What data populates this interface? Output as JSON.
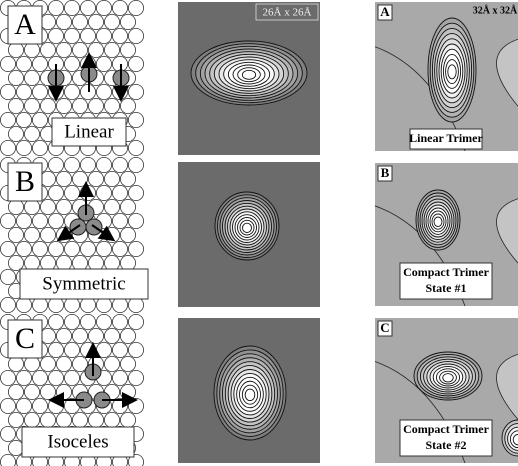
{
  "left_column": {
    "rows": [
      {
        "letter": "A",
        "caption": "Linear"
      },
      {
        "letter": "B",
        "caption": "Symmetric"
      },
      {
        "letter": "C",
        "caption": "Isoceles"
      }
    ]
  },
  "middle_column": {
    "scale_label": "26Å x 26Å"
  },
  "right_column": {
    "scale_label": "32Å x 32Å",
    "panels": [
      {
        "letter": "A",
        "caption": [
          "Linear Trimer"
        ]
      },
      {
        "letter": "B",
        "caption": [
          "Compact Trimer",
          "State #1"
        ]
      },
      {
        "letter": "C",
        "caption": [
          "Compact Trimer",
          "State #2"
        ]
      }
    ]
  }
}
